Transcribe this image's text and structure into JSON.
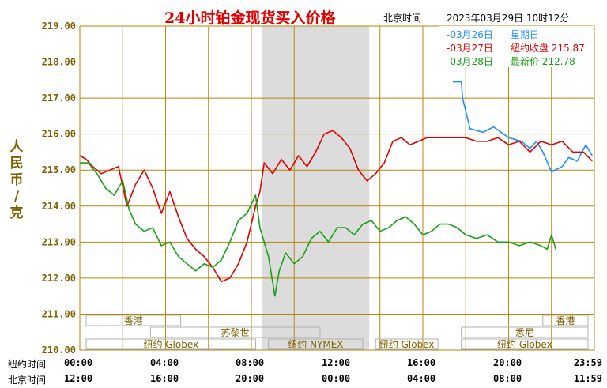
{
  "header": {
    "title": "24小时铂金现货买入价格",
    "location": "北京时间",
    "datetime": "2023年03月29日 10时12分"
  },
  "y_unit_label": "人民币/克",
  "legend": [
    {
      "date": "03月26日",
      "text": "星期日",
      "value": "",
      "color": "#1e90ff"
    },
    {
      "date": "03月27日",
      "text": "纽约收盘",
      "value": "215.87",
      "color": "#e00000"
    },
    {
      "date": "03月28日",
      "text": "最新价",
      "value": "212.78",
      "color": "#18a018"
    }
  ],
  "sessions": {
    "row1": [
      {
        "label": "香港",
        "from": 0,
        "to": 5
      },
      {
        "label": "香港",
        "from": 21.3,
        "to": 24
      }
    ],
    "row2": [
      {
        "label": "苏黎世",
        "from": 3,
        "to": 11.5
      },
      {
        "label": "悉尼",
        "from": 17.5,
        "to": 24
      }
    ],
    "row3": [
      {
        "label": "纽约 Globex",
        "from": 0,
        "to": 8.5
      },
      {
        "label": "纽约 NYMEX",
        "from": 8.5,
        "to": 13.5
      },
      {
        "label": "纽约 Globex",
        "from": 13.5,
        "to": 17
      },
      {
        "label": "纽约 Globex",
        "from": 17.5,
        "to": 24
      }
    ]
  },
  "x_rows": {
    "ny_label": "纽约时间",
    "ny_ticks": [
      "00:00",
      "04:00",
      "08:00",
      "12:00",
      "16:00",
      "20:00",
      "23:59"
    ],
    "bj_label": "北京时间",
    "bj_ticks": [
      "12:00",
      "16:00",
      "20:00",
      "00:00",
      "04:00",
      "08:00",
      "11:59"
    ]
  },
  "colors": {
    "grid": "#b8860b",
    "axis_text": "#806000",
    "shade": "#dcdcdc",
    "series1": "#1e90ff",
    "series2": "#e00000",
    "series3": "#18a018"
  },
  "chart_data": {
    "type": "line",
    "xlabel": "",
    "ylabel": "人民币/克",
    "xlim": [
      0,
      24
    ],
    "ylim": [
      210.0,
      219.0
    ],
    "y_ticks": [
      "210.00",
      "211.00",
      "212.00",
      "213.00",
      "214.00",
      "215.00",
      "216.00",
      "217.00",
      "218.00",
      "219.00"
    ],
    "shaded_session_hours": [
      8.5,
      13.5
    ],
    "grid": true,
    "legend_position": "top-right",
    "series": [
      {
        "name": "03月26日",
        "x": [
          17.4,
          17.8,
          17.85,
          18.2,
          18.8,
          19.3,
          20.0,
          20.6,
          21.0,
          21.3,
          21.6,
          22.0,
          22.5,
          22.8,
          23.2,
          23.6,
          23.9
        ],
        "y": [
          217.45,
          217.45,
          217.0,
          216.15,
          216.05,
          216.2,
          215.9,
          215.8,
          215.6,
          215.8,
          215.5,
          214.95,
          215.1,
          215.35,
          215.25,
          215.7,
          215.4
        ]
      },
      {
        "name": "03月27日",
        "x": [
          0.0,
          0.3,
          0.6,
          1.0,
          1.4,
          1.8,
          2.2,
          2.6,
          3.0,
          3.4,
          3.8,
          4.2,
          4.6,
          5.0,
          5.4,
          5.8,
          6.2,
          6.6,
          7.0,
          7.4,
          7.8,
          8.2,
          8.4,
          8.6,
          9.0,
          9.4,
          9.8,
          10.2,
          10.6,
          11.0,
          11.4,
          11.8,
          12.2,
          12.6,
          13.0,
          13.4,
          13.8,
          14.2,
          14.6,
          15.0,
          15.4,
          15.8,
          16.2,
          16.6,
          17.0,
          17.5,
          18.0,
          18.5,
          19.0,
          19.5,
          20.0,
          20.5,
          21.0,
          21.5,
          22.0,
          22.5,
          23.0,
          23.5,
          23.9
        ],
        "y": [
          215.4,
          215.3,
          215.1,
          214.9,
          215.0,
          215.1,
          214.0,
          214.6,
          215.0,
          214.5,
          213.8,
          214.4,
          213.7,
          213.1,
          212.8,
          212.6,
          212.3,
          211.9,
          212.0,
          212.4,
          213.0,
          214.0,
          214.4,
          215.2,
          214.9,
          215.3,
          215.0,
          215.4,
          215.1,
          215.5,
          216.0,
          216.1,
          215.9,
          215.6,
          215.0,
          214.7,
          214.9,
          215.2,
          215.8,
          215.9,
          215.7,
          215.8,
          215.9,
          215.9,
          215.9,
          215.9,
          215.9,
          215.8,
          215.8,
          215.9,
          215.7,
          215.8,
          215.5,
          215.8,
          215.7,
          215.8,
          215.5,
          215.5,
          215.25
        ]
      },
      {
        "name": "03月28日",
        "x": [
          0.0,
          0.4,
          0.8,
          1.2,
          1.6,
          2.0,
          2.3,
          2.6,
          3.0,
          3.4,
          3.8,
          4.2,
          4.6,
          5.0,
          5.4,
          5.8,
          6.2,
          6.6,
          7.0,
          7.4,
          7.8,
          8.2,
          8.4,
          8.8,
          9.1,
          9.3,
          9.6,
          10.0,
          10.4,
          10.8,
          11.2,
          11.6,
          12.0,
          12.4,
          12.8,
          13.2,
          13.6,
          14.0,
          14.4,
          14.8,
          15.2,
          15.6,
          16.0,
          16.4,
          16.8,
          17.2,
          17.6,
          18.0,
          18.5,
          19.0,
          19.5,
          20.0,
          20.5,
          21.0,
          21.5,
          21.8,
          22.0,
          22.2
        ],
        "y": [
          215.2,
          215.2,
          214.9,
          214.5,
          214.3,
          214.7,
          213.9,
          213.5,
          213.3,
          213.4,
          212.9,
          213.0,
          212.6,
          212.4,
          212.2,
          212.4,
          212.3,
          212.5,
          213.0,
          213.6,
          213.8,
          214.3,
          213.4,
          212.6,
          211.5,
          212.2,
          212.7,
          212.4,
          212.6,
          213.1,
          213.3,
          213.0,
          213.4,
          213.4,
          213.2,
          213.5,
          213.6,
          213.3,
          213.4,
          213.6,
          213.7,
          213.5,
          213.2,
          213.3,
          213.5,
          213.5,
          213.4,
          213.2,
          213.1,
          213.2,
          213.0,
          213.0,
          212.9,
          213.0,
          212.9,
          212.8,
          213.2,
          212.8
        ]
      }
    ]
  }
}
